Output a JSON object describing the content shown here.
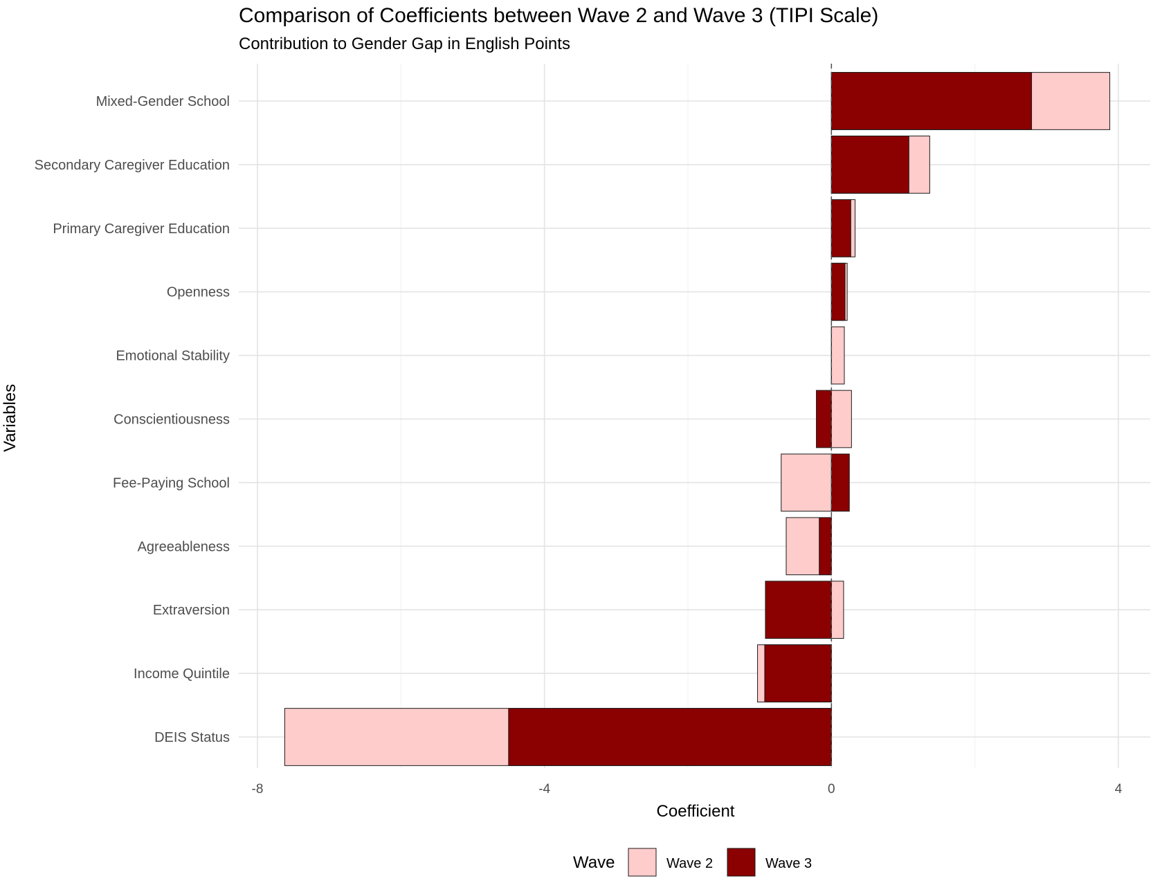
{
  "chart_data": {
    "type": "bar",
    "orientation": "horizontal",
    "title": "Comparison of Coefficients between Wave 2 and Wave 3 (TIPI Scale)",
    "subtitle": "Contribution to Gender Gap in English Points",
    "xlabel": "Coefficient",
    "ylabel": "Variables",
    "xlim": [
      -8,
      4
    ],
    "xticks": [
      -8,
      -4,
      0,
      4
    ],
    "grid": true,
    "legend": {
      "title": "Wave",
      "position": "bottom"
    },
    "categories": [
      "Mixed-Gender School",
      "Secondary Caregiver Education",
      "Primary Caregiver Education",
      "Openness",
      "Emotional Stability",
      "Conscientiousness",
      "Fee-Paying School",
      "Agreeableness",
      "Extraversion",
      "Income Quintile",
      "DEIS Status"
    ],
    "series": [
      {
        "name": "Wave 2",
        "color": "#ffcccc",
        "values": [
          3.88,
          1.37,
          0.33,
          0.22,
          0.18,
          0.28,
          -0.7,
          -0.63,
          0.17,
          -1.03,
          -7.62
        ]
      },
      {
        "name": "Wave 3",
        "color": "#8b0000",
        "values": [
          2.79,
          1.08,
          0.27,
          0.19,
          0.0,
          -0.21,
          0.25,
          -0.17,
          -0.92,
          -0.93,
          -4.5
        ]
      }
    ]
  }
}
